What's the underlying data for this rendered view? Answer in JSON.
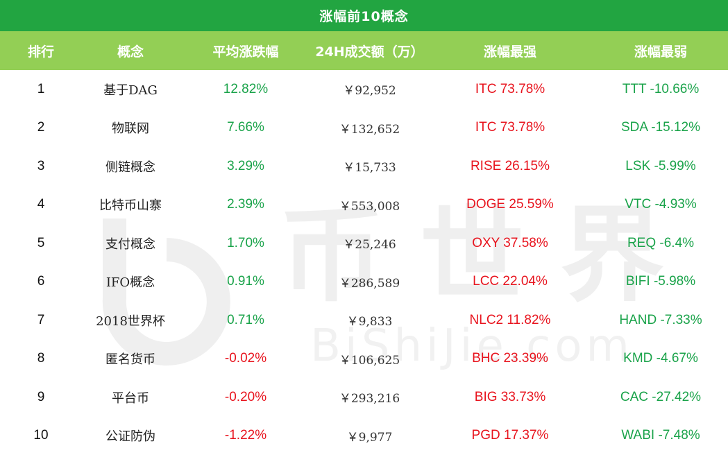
{
  "title": "涨幅前10概念",
  "headers": {
    "rank": "排行",
    "concept": "概念",
    "avg_change": "平均涨跌幅",
    "volume": "24H成交额（万）",
    "strongest": "涨幅最强",
    "weakest": "涨幅最弱"
  },
  "watermark": {
    "chars": "币 世 界",
    "url": "BiShiJie.com"
  },
  "colors": {
    "title_bg": "#22a541",
    "header_bg": "#93cf55",
    "positive": "#1aa34a",
    "negative": "#e8141e"
  },
  "rows": [
    {
      "rank": "1",
      "concept": "基于DAG",
      "avg": "12.82%",
      "avg_sign": "pos",
      "volume": "￥92,952",
      "strongest": "ITC 73.78%",
      "weakest": "TTT -10.66%"
    },
    {
      "rank": "2",
      "concept": "物联网",
      "avg": "7.66%",
      "avg_sign": "pos",
      "volume": "￥132,652",
      "strongest": "ITC 73.78%",
      "weakest": "SDA -15.12%"
    },
    {
      "rank": "3",
      "concept": "侧链概念",
      "avg": "3.29%",
      "avg_sign": "pos",
      "volume": "￥15,733",
      "strongest": "RISE 26.15%",
      "weakest": "LSK -5.99%"
    },
    {
      "rank": "4",
      "concept": "比特币山寨",
      "avg": "2.39%",
      "avg_sign": "pos",
      "volume": "￥553,008",
      "strongest": "DOGE 25.59%",
      "weakest": "VTC -4.93%"
    },
    {
      "rank": "5",
      "concept": "支付概念",
      "avg": "1.70%",
      "avg_sign": "pos",
      "volume": "￥25,246",
      "strongest": "OXY 37.58%",
      "weakest": "REQ -6.4%"
    },
    {
      "rank": "6",
      "concept": "IFO概念",
      "avg": "0.91%",
      "avg_sign": "pos",
      "volume": "￥286,589",
      "strongest": "LCC 22.04%",
      "weakest": "BIFI -5.98%"
    },
    {
      "rank": "7",
      "concept": "2018世界杯",
      "avg": "0.71%",
      "avg_sign": "pos",
      "volume": "￥9,833",
      "strongest": "NLC2 11.82%",
      "weakest": "HAND -7.33%"
    },
    {
      "rank": "8",
      "concept": "匿名货币",
      "avg": "-0.02%",
      "avg_sign": "neg",
      "volume": "￥106,625",
      "strongest": "BHC 23.39%",
      "weakest": "KMD -4.67%"
    },
    {
      "rank": "9",
      "concept": "平台币",
      "avg": "-0.20%",
      "avg_sign": "neg",
      "volume": "￥293,216",
      "strongest": "BIG 33.73%",
      "weakest": "CAC -27.42%"
    },
    {
      "rank": "10",
      "concept": "公证防伪",
      "avg": "-1.22%",
      "avg_sign": "neg",
      "volume": "￥9,977",
      "strongest": "PGD 17.37%",
      "weakest": "WABI -7.48%"
    }
  ]
}
